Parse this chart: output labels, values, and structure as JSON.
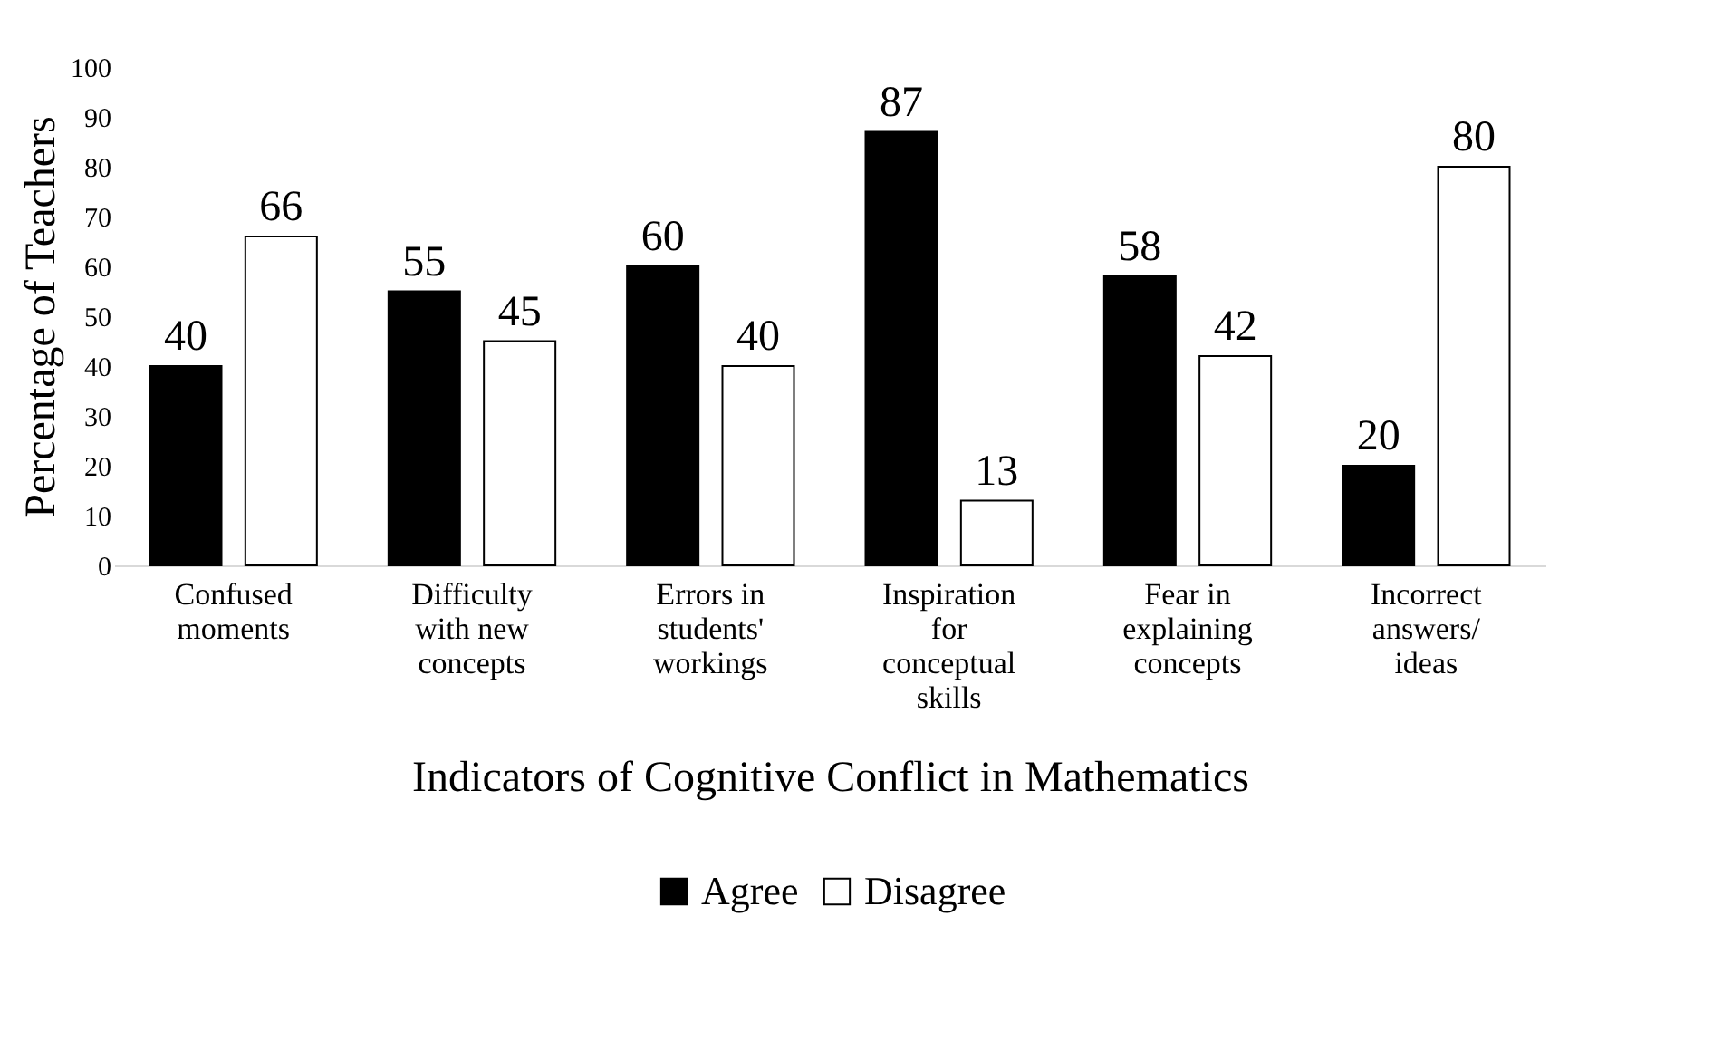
{
  "chart_data": {
    "type": "bar",
    "xlabel": "Indicators of Cognitive Conflict in Mathematics",
    "ylabel": "Percentage of Teachers",
    "categories": [
      "Confused moments",
      "Difficulty with new concepts",
      "Errors in students' workings",
      "Inspiration for conceptual skills",
      "Fear in explaining concepts",
      "Incorrect answers/ ideas"
    ],
    "series": [
      {
        "name": "Agree",
        "color": "#000000",
        "values": [
          40,
          55,
          60,
          87,
          58,
          20
        ]
      },
      {
        "name": "Disagree",
        "color": "#ffffff",
        "values": [
          66,
          45,
          40,
          13,
          42,
          80
        ]
      }
    ],
    "ylim": [
      0,
      100
    ],
    "yticks": [
      0,
      10,
      20,
      30,
      40,
      50,
      60,
      70,
      80,
      90,
      100
    ],
    "grid": false,
    "legend": "bottom",
    "data_labels": true
  }
}
